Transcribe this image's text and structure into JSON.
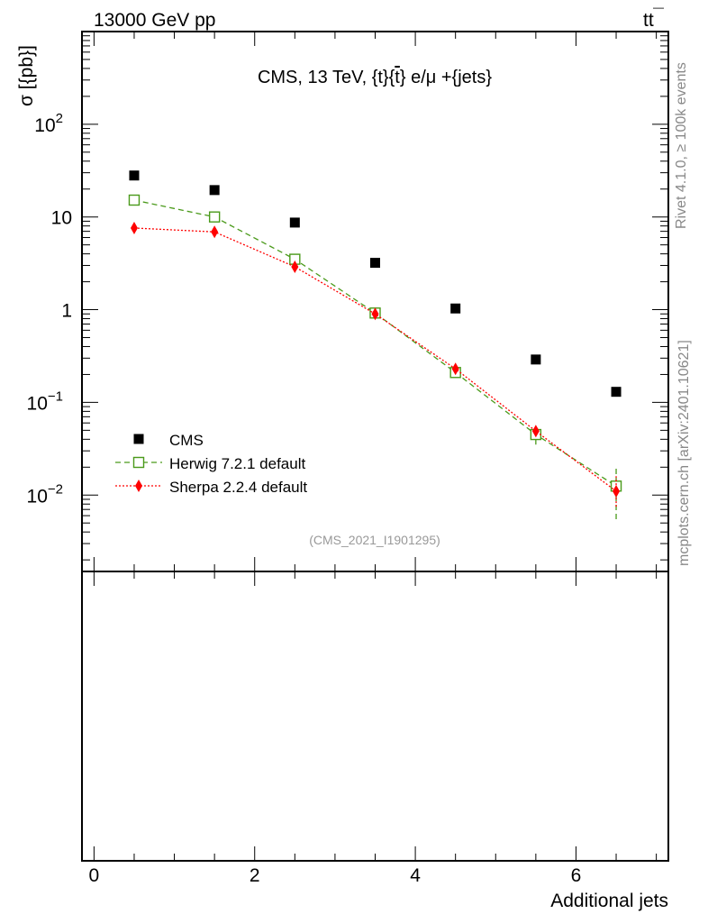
{
  "header": {
    "left": "13000 GeV pp",
    "right_main": "tt",
    "right_bar_char": "t"
  },
  "side_labels": {
    "upper": "Rivet 4.1.0, ≥ 100k events",
    "lower": "mcplots.cern.ch [arXiv:2401.10621]"
  },
  "chart_data": {
    "type": "scatter",
    "title": "CMS, 13 TeV, {t}{t̄} e/μ +{jets}",
    "title_prefix": "CMS, 13 TeV, {t}{",
    "title_bar_char": "t",
    "title_suffix": "} e/μ +{jets}",
    "ylabel": "σ [{pb}]",
    "xlabel": "Additional jets",
    "yscale": "log",
    "ylim": [
      0.0015,
      1000
    ],
    "xlim": [
      -0.15,
      7.15
    ],
    "x_ticks": [
      {
        "value": 0,
        "label": "0"
      },
      {
        "value": 2,
        "label": "2"
      },
      {
        "value": 4,
        "label": "4"
      },
      {
        "value": 6,
        "label": "6"
      }
    ],
    "y_ticks": [
      {
        "value": 100,
        "base": "10",
        "exp": "2"
      },
      {
        "value": 10,
        "base": "10",
        "exp": ""
      },
      {
        "value": 1,
        "base": "1",
        "exp": ""
      },
      {
        "value": 0.1,
        "base": "10",
        "exp": "−1"
      },
      {
        "value": 0.01,
        "base": "10",
        "exp": "−2"
      }
    ],
    "watermark": "(CMS_2021_I1901295)",
    "legend_position": "lower-left",
    "series": [
      {
        "name": "CMS",
        "color": "#000000",
        "marker": "filled-square",
        "line": "none",
        "x": [
          0.5,
          1.5,
          2.5,
          3.5,
          4.5,
          5.5,
          6.5
        ],
        "y": [
          28,
          19.5,
          8.7,
          3.2,
          1.03,
          0.29,
          0.13
        ]
      },
      {
        "name": "Herwig 7.2.1 default",
        "color": "#4a9a1a",
        "marker": "open-square",
        "line": "dashed",
        "x": [
          0.5,
          1.5,
          2.5,
          3.5,
          4.5,
          5.5,
          6.5
        ],
        "y": [
          15.2,
          10.0,
          3.5,
          0.92,
          0.21,
          0.045,
          0.0125
        ],
        "err_low": [
          15.2,
          10.0,
          3.5,
          0.92,
          0.2,
          0.035,
          0.0055
        ],
        "err_high": [
          15.2,
          10.0,
          3.5,
          0.92,
          0.22,
          0.055,
          0.02
        ]
      },
      {
        "name": "Sherpa 2.2.4 default",
        "color": "#ff0000",
        "marker": "filled-diamond",
        "line": "dotted",
        "x": [
          0.5,
          1.5,
          2.5,
          3.5,
          4.5,
          5.5,
          6.5
        ],
        "y": [
          7.6,
          6.9,
          2.9,
          0.9,
          0.23,
          0.049,
          0.011
        ],
        "err_low": [
          7.6,
          6.9,
          2.9,
          0.9,
          0.225,
          0.043,
          0.0075
        ],
        "err_high": [
          7.6,
          6.9,
          2.9,
          0.9,
          0.235,
          0.056,
          0.016
        ]
      }
    ]
  }
}
